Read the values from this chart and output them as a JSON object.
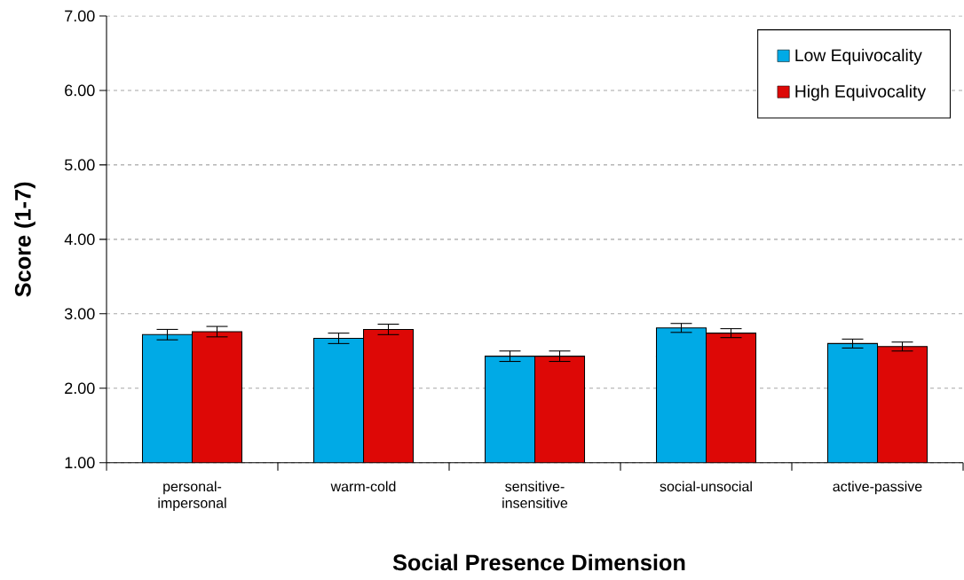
{
  "chart_data": {
    "type": "bar",
    "xlabel": "Social Presence Dimension",
    "ylabel": "Score (1-7)",
    "categories": [
      "personal-impersonal",
      "warm-cold",
      "sensitive-insensitive",
      "social-unsocial",
      "active-passive"
    ],
    "series": [
      {
        "name": "Low Equivocality",
        "color": "#00aae6",
        "values": [
          2.72,
          2.67,
          2.43,
          2.81,
          2.6
        ],
        "errors": [
          0.07,
          0.07,
          0.07,
          0.06,
          0.06
        ]
      },
      {
        "name": "High Equivocality",
        "color": "#dd0806",
        "values": [
          2.76,
          2.79,
          2.43,
          2.74,
          2.56
        ],
        "errors": [
          0.07,
          0.07,
          0.07,
          0.06,
          0.06
        ]
      }
    ],
    "ylim": [
      1,
      7
    ],
    "yticks": [
      {
        "value": 1,
        "label": "1.00"
      },
      {
        "value": 2,
        "label": "2.00"
      },
      {
        "value": 3,
        "label": "3.00"
      },
      {
        "value": 4,
        "label": "4.00"
      },
      {
        "value": 5,
        "label": "5.00"
      },
      {
        "value": 6,
        "label": "6.00"
      },
      {
        "value": 7,
        "label": "7.00"
      }
    ],
    "grid": "y",
    "legend": "top right"
  }
}
